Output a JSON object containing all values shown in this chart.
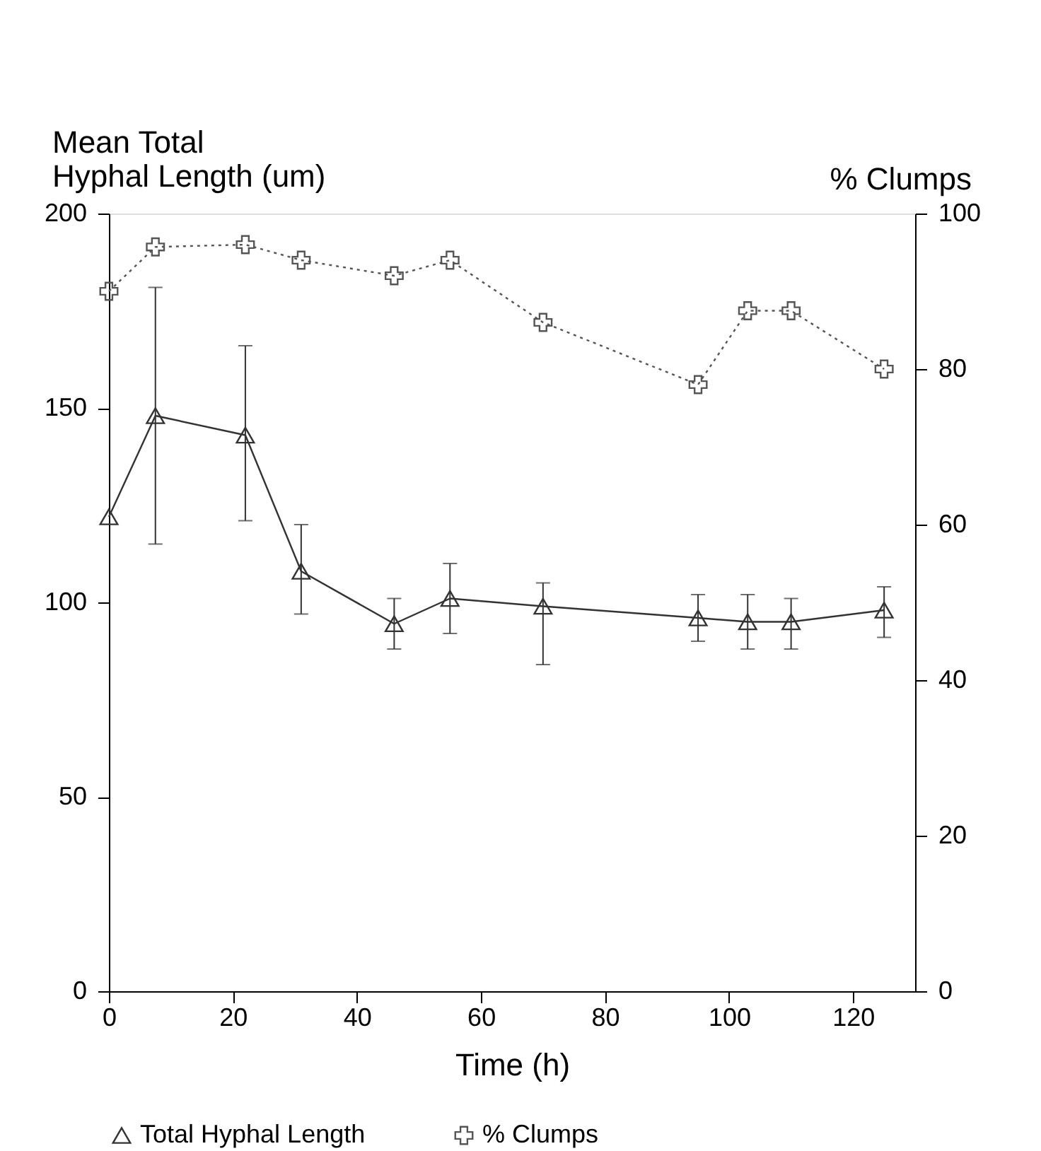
{
  "chart_data": {
    "type": "line",
    "xlabel": "Time (h)",
    "ylabel": "Mean Total\nHyphal Length (um)",
    "y2label": "% Clumps",
    "x": [
      0,
      7.5,
      22,
      31,
      46,
      55,
      70,
      95,
      103,
      110,
      125
    ],
    "series": [
      {
        "name": "Total Hyphal Length",
        "color": "#333333",
        "marker": "triangle",
        "line_style": "solid",
        "values": [
          122,
          148,
          143,
          108,
          94.5,
          101,
          99,
          96,
          95,
          95,
          98
        ],
        "errors": [
          null,
          [
            115,
            181
          ],
          [
            121,
            166
          ],
          [
            97,
            120
          ],
          [
            88,
            101
          ],
          [
            92,
            110
          ],
          [
            84,
            105
          ],
          [
            90,
            102
          ],
          [
            88,
            102
          ],
          [
            88,
            101
          ],
          [
            91,
            104
          ]
        ]
      },
      {
        "name": "% Clumps",
        "color": "#555555",
        "marker": "cross",
        "line_style": "dotted",
        "axis": "y2",
        "values": [
          90,
          95.7,
          96,
          94,
          92,
          94,
          86,
          78,
          87.5,
          87.5,
          80
        ]
      }
    ],
    "xlim": [
      0,
      130
    ],
    "xticks": [
      0,
      20,
      40,
      60,
      80,
      100,
      120
    ],
    "ylim": [
      0,
      200
    ],
    "yticks": [
      0,
      50,
      100,
      150,
      200
    ],
    "y2lim": [
      0,
      100
    ],
    "y2ticks": [
      0,
      20,
      40,
      60,
      80,
      100
    ],
    "grid": false,
    "legend": "bottom"
  }
}
